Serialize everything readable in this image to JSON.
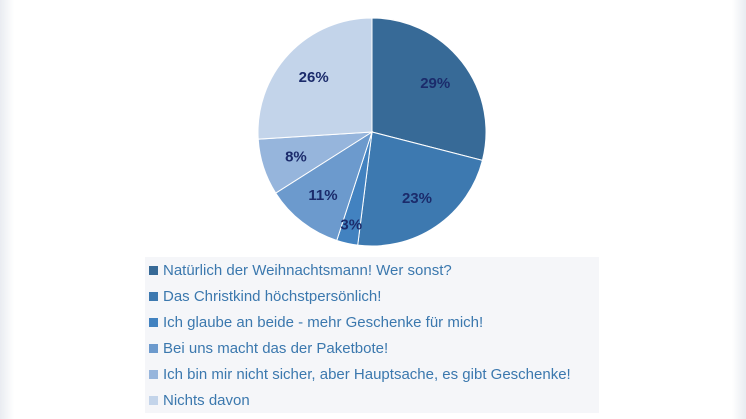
{
  "chart_data": {
    "type": "pie",
    "slices": [
      {
        "label": "Natürlich der Weihnachtsmann! Wer sonst?",
        "value": 29,
        "value_label": "29%",
        "color": "#376a97"
      },
      {
        "label": "Das Christkind höchstpersönlich!",
        "value": 23,
        "value_label": "23%",
        "color": "#3d79b0"
      },
      {
        "label": "Ich glaube an beide - mehr Geschenke für mich!",
        "value": 3,
        "value_label": "3%",
        "color": "#4282c0"
      },
      {
        "label": "Bei uns macht das der Paketbote!",
        "value": 11,
        "value_label": "11%",
        "color": "#6c9acd"
      },
      {
        "label": "Ich bin mir nicht sicher, aber Hauptsache, es gibt Geschenke!",
        "value": 8,
        "value_label": "8%",
        "color": "#96b5dc"
      },
      {
        "label": "Nichts davon",
        "value": 26,
        "value_label": "26%",
        "color": "#c3d4ea"
      }
    ],
    "start_angle": "12 o'clock",
    "direction": "clockwise",
    "legend_position": "bottom"
  }
}
